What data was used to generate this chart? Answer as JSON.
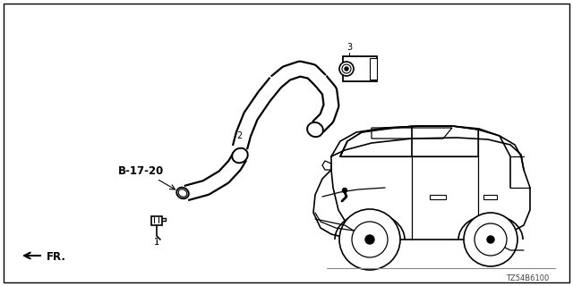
{
  "background_color": "#ffffff",
  "border_color": "#000000",
  "text_color": "#000000",
  "diagram_code": "TZ54B6100",
  "label_fr": "FR.",
  "label_b1720": "B-17-20",
  "figsize": [
    6.4,
    3.2
  ],
  "dpi": 100
}
